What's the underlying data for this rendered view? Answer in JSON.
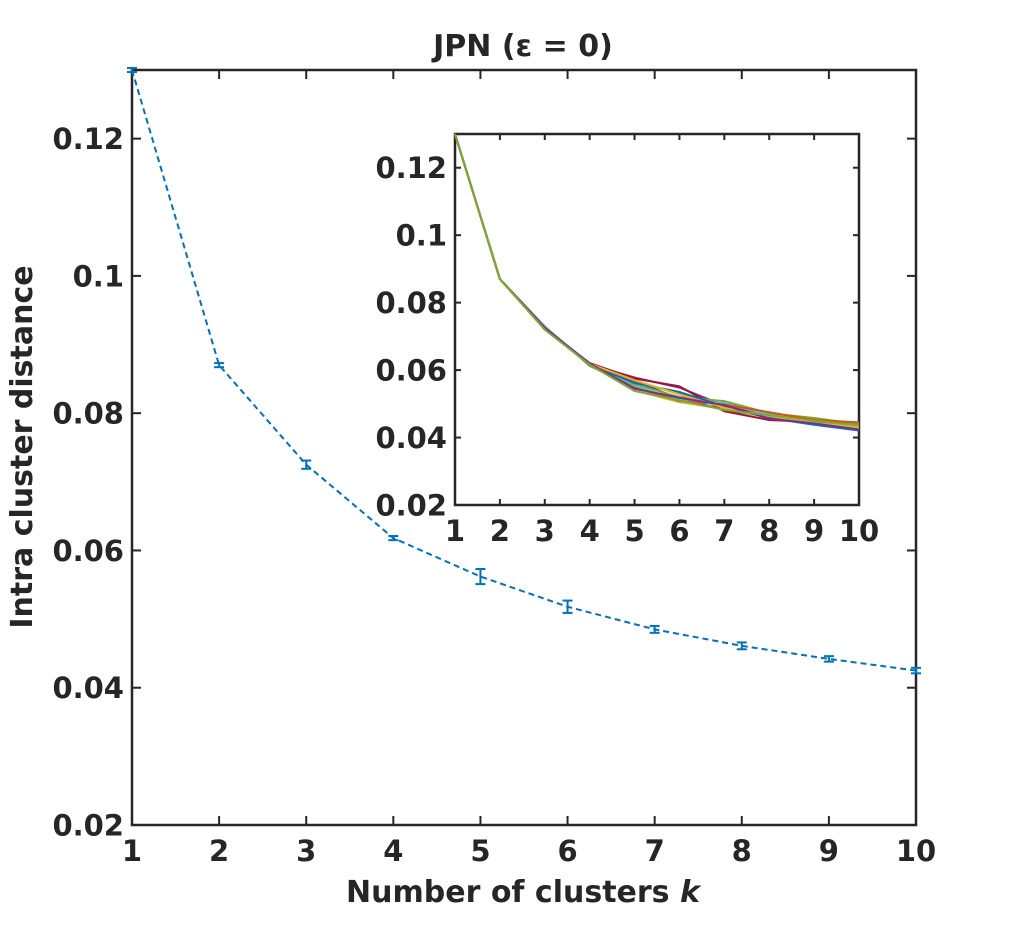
{
  "chart_data": [
    {
      "type": "line",
      "title": "JPN (ε = 0)",
      "xlabel_prefix": "Number of clusters ",
      "xlabel_var": "k",
      "ylabel": "Intra cluster distance",
      "xlim": [
        1,
        10
      ],
      "ylim": [
        0.02,
        0.13
      ],
      "xticks": [
        1,
        2,
        3,
        4,
        5,
        6,
        7,
        8,
        9,
        10
      ],
      "yticks": [
        0.02,
        0.04,
        0.06,
        0.08,
        0.1,
        0.12
      ],
      "ytick_labels": [
        "0.02",
        "0.04",
        "0.06",
        "0.08",
        "0.1",
        "0.12"
      ],
      "line_style": "dashed",
      "error_bars": true,
      "color": "#0072BD",
      "series": [
        {
          "x": [
            1,
            2,
            3,
            4,
            5,
            6,
            7,
            8,
            9,
            10
          ],
          "values": [
            0.13,
            0.087,
            0.0725,
            0.0618,
            0.0562,
            0.0518,
            0.0485,
            0.0461,
            0.0442,
            0.0425
          ],
          "error": [
            0.0003,
            0.0003,
            0.0006,
            0.0003,
            0.0011,
            0.0009,
            0.0005,
            0.0005,
            0.0004,
            0.0004
          ]
        }
      ]
    },
    {
      "type": "line",
      "inset": true,
      "xlim": [
        1,
        10
      ],
      "ylim": [
        0.02,
        0.13
      ],
      "xticks": [
        1,
        2,
        3,
        4,
        5,
        6,
        7,
        8,
        9,
        10
      ],
      "yticks": [
        0.02,
        0.04,
        0.06,
        0.08,
        0.1,
        0.12
      ],
      "ytick_labels": [
        "0.02",
        "0.04",
        "0.06",
        "0.08",
        "0.1",
        "0.12"
      ],
      "colors": [
        "#0072BD",
        "#D95319",
        "#EDB120",
        "#7E2F8E",
        "#77AC30",
        "#4DBEEE",
        "#A2142F"
      ],
      "series": [
        {
          "values": [
            0.13,
            0.087,
            0.0722,
            0.062,
            0.0568,
            0.0515,
            0.0482,
            0.0462,
            0.0445,
            0.043
          ]
        },
        {
          "values": [
            0.13,
            0.087,
            0.0728,
            0.0615,
            0.0565,
            0.053,
            0.0488,
            0.046,
            0.0448,
            0.0428
          ]
        },
        {
          "values": [
            0.13,
            0.087,
            0.072,
            0.0618,
            0.054,
            0.0505,
            0.0485,
            0.046,
            0.0442,
            0.0422
          ]
        },
        {
          "values": [
            0.13,
            0.087,
            0.0726,
            0.0616,
            0.0578,
            0.0548,
            0.0495,
            0.0462,
            0.0455,
            0.0435
          ]
        },
        {
          "values": [
            0.13,
            0.087,
            0.0724,
            0.0619,
            0.0558,
            0.052,
            0.0508,
            0.0472,
            0.0458,
            0.044
          ]
        },
        {
          "values": [
            0.13,
            0.087,
            0.073,
            0.0612,
            0.0552,
            0.0512,
            0.0502,
            0.0468,
            0.0448,
            0.0432
          ]
        },
        {
          "values": [
            0.13,
            0.087,
            0.0721,
            0.0621,
            0.0575,
            0.0552,
            0.0478,
            0.0452,
            0.0446,
            0.0425
          ]
        },
        {
          "values": [
            0.13,
            0.087,
            0.0723,
            0.0617,
            0.0562,
            0.0535,
            0.0492,
            0.0458,
            0.0438,
            0.0421
          ]
        },
        {
          "values": [
            0.13,
            0.087,
            0.0727,
            0.0614,
            0.0548,
            0.0508,
            0.0498,
            0.0475,
            0.0452,
            0.0445
          ]
        },
        {
          "values": [
            0.13,
            0.087,
            0.0722,
            0.0619,
            0.057,
            0.0528,
            0.0488,
            0.0464,
            0.0444,
            0.0429
          ]
        },
        {
          "values": [
            0.13,
            0.087,
            0.0725,
            0.062,
            0.0545,
            0.0518,
            0.0496,
            0.0456,
            0.0442,
            0.0424
          ]
        },
        {
          "values": [
            0.13,
            0.087,
            0.072,
            0.0616,
            0.0538,
            0.051,
            0.0482,
            0.0466,
            0.045,
            0.0436
          ]
        }
      ]
    }
  ]
}
